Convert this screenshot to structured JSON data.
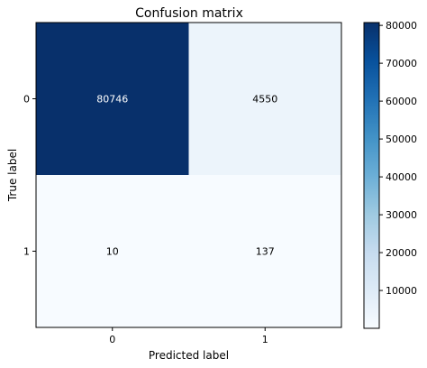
{
  "chart_data": {
    "type": "heatmap",
    "title": "Confusion matrix",
    "xlabel": "Predicted label",
    "ylabel": "True label",
    "x_categories": [
      "0",
      "1"
    ],
    "y_categories": [
      "0",
      "1"
    ],
    "values": [
      [
        80746,
        4550
      ],
      [
        10,
        137
      ]
    ],
    "colormap": "Blues",
    "colorbar": {
      "min": 10,
      "max": 80746,
      "ticks": [
        10000,
        20000,
        30000,
        40000,
        50000,
        60000,
        70000,
        80000
      ]
    },
    "colors": {
      "low": "#f7fbff",
      "high": "#08306b",
      "text_on_dark": "#ffffff",
      "text_on_light": "#000000"
    }
  }
}
